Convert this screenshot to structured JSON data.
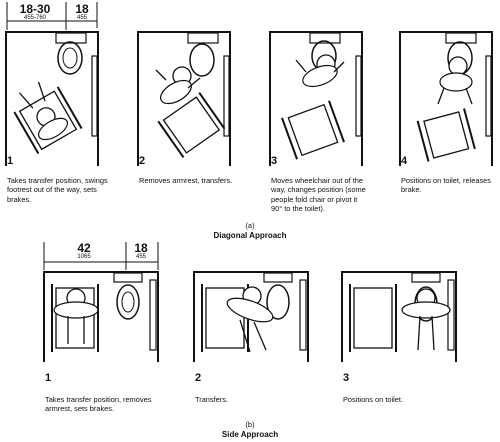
{
  "diagonal": {
    "dimensions": [
      {
        "main": "18-30",
        "sub": "455-760"
      },
      {
        "main": "18",
        "sub": "455"
      }
    ],
    "steps": [
      {
        "number": "1",
        "caption": [
          "Takes transfer position, swings",
          "footrest out of the way, sets",
          "brakes."
        ]
      },
      {
        "number": "2",
        "caption": [
          "Removes armrest, transfers."
        ]
      },
      {
        "number": "3",
        "caption": [
          "Moves wheelchair out of the",
          "way, changes position (some",
          "people fold chair or pivot it",
          "90° to the toilet)."
        ]
      },
      {
        "number": "4",
        "caption": [
          "Positions on toilet, releases",
          "brake."
        ]
      }
    ],
    "label": "(a)",
    "title": "Diagonal Approach"
  },
  "side": {
    "dimensions": [
      {
        "main": "42",
        "sub": "1065"
      },
      {
        "main": "18",
        "sub": "455"
      }
    ],
    "steps": [
      {
        "number": "1",
        "caption": [
          "Takes transfer position, removes",
          "armrest, sets brakes."
        ]
      },
      {
        "number": "2",
        "caption": [
          "Transfers."
        ]
      },
      {
        "number": "3",
        "caption": [
          "Positions on toilet."
        ]
      }
    ],
    "label": "(b)",
    "title": "Side Approach"
  }
}
